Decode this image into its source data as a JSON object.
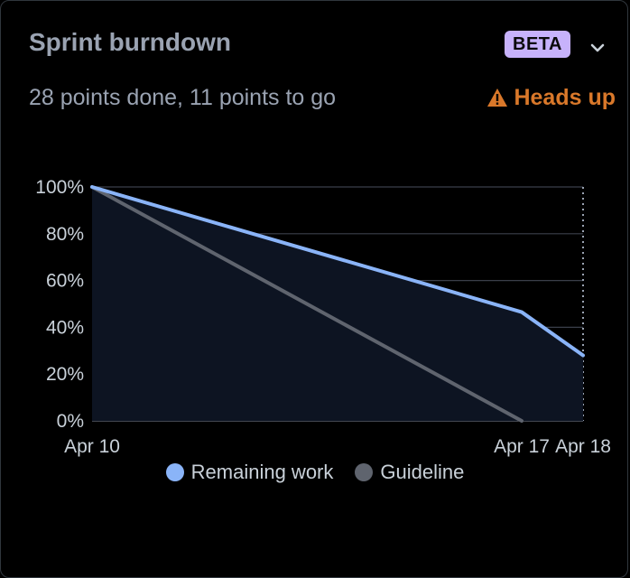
{
  "card": {
    "title": "Sprint burndown",
    "badge": "BETA",
    "subtitle": "28 points done, 11 points to go",
    "warning": "Heads up",
    "menu_icon": "chevron-down-icon",
    "warning_icon": "warning-triangle-icon"
  },
  "colors": {
    "remaining": "#8ab4f8",
    "guideline": "#5f646e",
    "area_fill": "#0d1422",
    "warning": "#d9782a",
    "badge_bg": "#c7b2fb"
  },
  "chart_data": {
    "type": "line",
    "x_ticks": [
      "Apr 10",
      "Apr 17",
      "Apr 18"
    ],
    "x_range_days": [
      0,
      8
    ],
    "x_tick_days": [
      0,
      7,
      8
    ],
    "y_ticks": [
      "100%",
      "80%",
      "60%",
      "40%",
      "20%",
      "0%"
    ],
    "ylim": [
      0,
      100
    ],
    "grid": true,
    "legend_position": "bottom",
    "series": [
      {
        "name": "Remaining work",
        "points": [
          [
            0,
            100
          ],
          [
            7,
            46.5
          ],
          [
            8,
            28
          ]
        ],
        "filled": true
      },
      {
        "name": "Guideline",
        "points": [
          [
            0,
            100
          ],
          [
            7,
            0
          ]
        ]
      }
    ]
  }
}
